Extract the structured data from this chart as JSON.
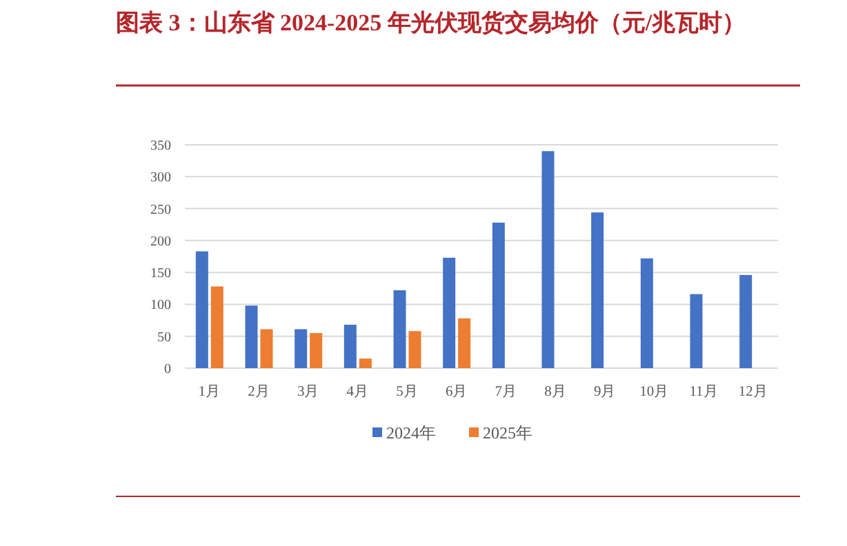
{
  "chart_data": {
    "type": "bar",
    "title": "图表 3：山东省 2024-2025 年光伏现货交易均价（元/兆瓦时）",
    "categories": [
      "1月",
      "2月",
      "3月",
      "4月",
      "5月",
      "6月",
      "7月",
      "8月",
      "9月",
      "10月",
      "11月",
      "12月"
    ],
    "series": [
      {
        "name": "2024年",
        "color": "#4472c4",
        "values": [
          183,
          98,
          61,
          68,
          122,
          173,
          228,
          340,
          244,
          172,
          116,
          146
        ]
      },
      {
        "name": "2025年",
        "color": "#ed7d31",
        "values": [
          128,
          61,
          55,
          15,
          58,
          78,
          null,
          null,
          null,
          null,
          null,
          null
        ]
      }
    ],
    "ylim": [
      0,
      350
    ],
    "yticks": [
      0,
      50,
      100,
      150,
      200,
      250,
      300,
      350
    ],
    "grid": "y",
    "legend": "bottom"
  }
}
